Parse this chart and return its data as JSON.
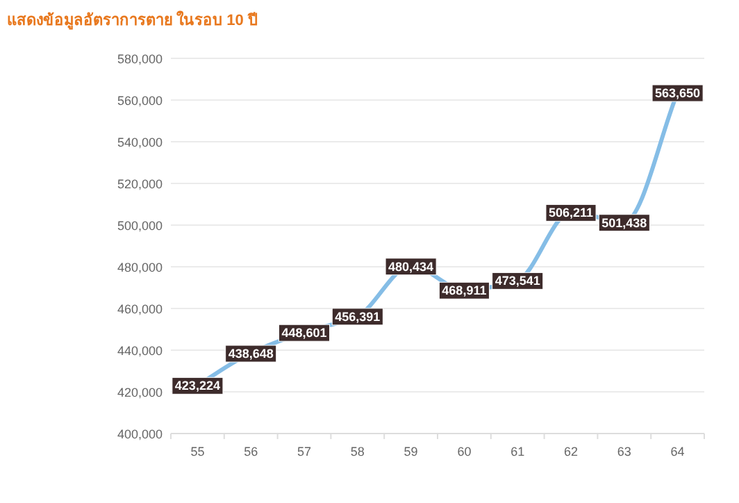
{
  "chart_data": {
    "type": "line",
    "title": "แสดงข้อมูลอัตราการตาย ในรอบ 10 ปี",
    "categories": [
      "55",
      "56",
      "57",
      "58",
      "59",
      "60",
      "61",
      "62",
      "63",
      "64"
    ],
    "series": [
      {
        "color": "#85bde6",
        "values": [
          423224,
          438648,
          448601,
          456391,
          480434,
          468911,
          473541,
          506211,
          501438,
          563650
        ],
        "value_labels": [
          "423,224",
          "438,648",
          "448,601",
          "456,391",
          "480,434",
          "468,911",
          "473,541",
          "506,211",
          "501,438",
          "563,650"
        ]
      }
    ],
    "ylim": [
      400000,
      580000
    ],
    "yticks": [
      {
        "value": 400000,
        "label": "400,000"
      },
      {
        "value": 420000,
        "label": "420,000"
      },
      {
        "value": 440000,
        "label": "440,000"
      },
      {
        "value": 460000,
        "label": "460,000"
      },
      {
        "value": 480000,
        "label": "480,000"
      },
      {
        "value": 500000,
        "label": "500,000"
      },
      {
        "value": 520000,
        "label": "520,000"
      },
      {
        "value": 540000,
        "label": "540,000"
      },
      {
        "value": 560000,
        "label": "560,000"
      },
      {
        "value": 580000,
        "label": "580,000"
      }
    ],
    "grid": "y",
    "line_style": "solid",
    "marker": "square"
  }
}
